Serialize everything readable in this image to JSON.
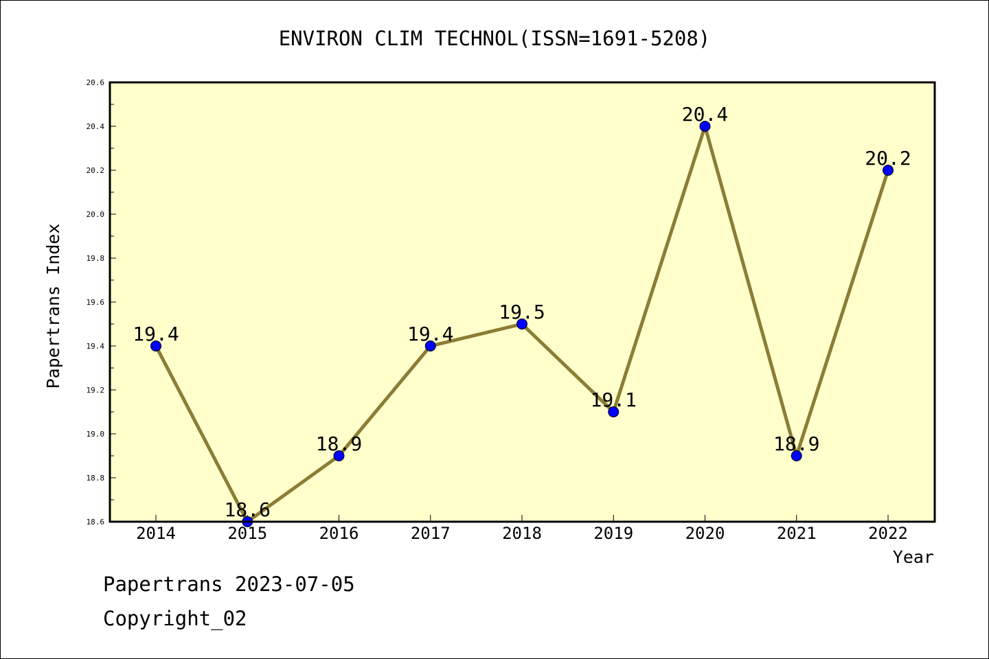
{
  "colors": {
    "plot_background": "#ffffcc",
    "line": "#8b7d35",
    "marker": "#0000ff"
  },
  "footer": {
    "line1": "Papertrans 2023-07-05",
    "line2": "Copyright_02"
  },
  "chart_data": {
    "type": "line",
    "title": "ENVIRON CLIM TECHNOL(ISSN=1691-5208)",
    "xlabel": "Year",
    "ylabel": "Papertrans Index",
    "categories": [
      "2014",
      "2015",
      "2016",
      "2017",
      "2018",
      "2019",
      "2020",
      "2021",
      "2022"
    ],
    "values": [
      19.4,
      18.6,
      18.9,
      19.4,
      19.5,
      19.1,
      20.4,
      18.9,
      20.2
    ],
    "data_labels": [
      "19.4",
      "18.6",
      "18.9",
      "19.4",
      "19.5",
      "19.1",
      "20.4",
      "18.9",
      "20.2"
    ],
    "ylim": [
      18.6,
      20.6
    ],
    "yticks": [
      "18.6",
      "18.8",
      "19.0",
      "19.2",
      "19.4",
      "19.6",
      "19.8",
      "20.0",
      "20.2",
      "20.4",
      "20.6"
    ],
    "grid": false,
    "legend": "none"
  }
}
